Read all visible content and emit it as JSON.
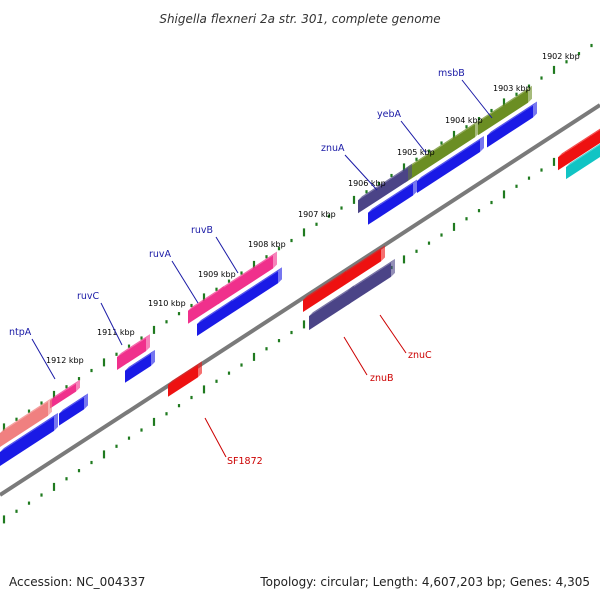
{
  "title": "Shigella flexneri 2a str. 301, complete genome",
  "footer": {
    "accession": "Accession: NC_004337",
    "summary": "Topology: circular; Length: 4,607,203 bp; Genes: 4,305"
  },
  "colors": {
    "backbone": "#7a7a7a",
    "tick": "#1f7a1f",
    "label_forward": "#1a1aa6",
    "label_reverse": "#cc0000",
    "cds_blue": "#1a1ae6",
    "red": "#ee1111",
    "pink": "#f0308c",
    "olive": "#6b8e23",
    "slate": "#4b4487",
    "salmon": "#f08080",
    "cyan": "#11c4c4"
  },
  "ticks": [
    {
      "label": "1902 kbp"
    },
    {
      "label": "1903 kbp"
    },
    {
      "label": "1904 kbp"
    },
    {
      "label": "1905 kbp"
    },
    {
      "label": "1906 kbp"
    },
    {
      "label": "1907 kbp"
    },
    {
      "label": "1908 kbp"
    },
    {
      "label": "1909 kbp"
    },
    {
      "label": "1910 kbp"
    },
    {
      "label": "1911 kbp"
    },
    {
      "label": "1912 kbp"
    }
  ],
  "genes": [
    {
      "name": "msbB",
      "strand": "forward"
    },
    {
      "name": "yebA",
      "strand": "forward"
    },
    {
      "name": "znuA",
      "strand": "forward"
    },
    {
      "name": "ruvB",
      "strand": "forward"
    },
    {
      "name": "ruvA",
      "strand": "forward"
    },
    {
      "name": "ruvC",
      "strand": "forward"
    },
    {
      "name": "ntpA",
      "strand": "forward"
    },
    {
      "name": "znuC",
      "strand": "reverse"
    },
    {
      "name": "znuB",
      "strand": "reverse"
    },
    {
      "name": "SF1872",
      "strand": "reverse"
    }
  ]
}
